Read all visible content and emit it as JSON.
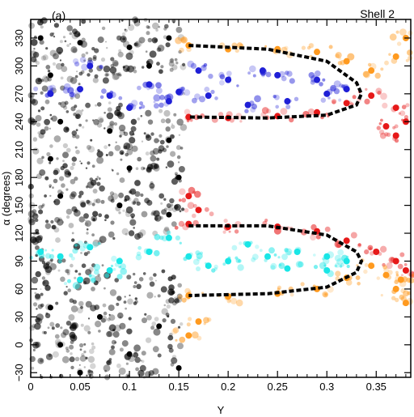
{
  "chart_data": {
    "type": "scatter",
    "panel_label": "(a)",
    "title": "Shell 2",
    "xlabel": "Y",
    "ylabel": "α (degrees)",
    "xlim": [
      0,
      0.385
    ],
    "ylim": [
      -35,
      350
    ],
    "xticks": [
      0,
      0.05,
      0.1,
      0.15,
      0.2,
      0.25,
      0.3,
      0.35
    ],
    "xtick_labels": [
      "0",
      "0.05",
      "0.1",
      "0.15",
      "0.2",
      "0.25",
      "0.3",
      "0.35"
    ],
    "yticks": [
      -30,
      0,
      30,
      60,
      90,
      120,
      150,
      180,
      210,
      240,
      270,
      300,
      330
    ],
    "ytick_labels": [
      "−30",
      "0",
      "30",
      "60",
      "90",
      "120",
      "150",
      "180",
      "210",
      "240",
      "270",
      "300",
      "330"
    ],
    "grid": false,
    "colors": {
      "black_region": "#000000",
      "blue": "#1f1fd6",
      "cyan": "#19e6e6",
      "red": "#e61919",
      "orange": "#ff9a1f"
    },
    "series": [
      {
        "color_key": "black_region",
        "description_points": [
          [
            0.01,
            330
          ],
          [
            0.05,
            325
          ],
          [
            0.1,
            320
          ],
          [
            0.14,
            330
          ],
          [
            0.02,
            290
          ],
          [
            0.12,
            300
          ],
          [
            0.03,
            240
          ],
          [
            0.08,
            230
          ],
          [
            0.14,
            220
          ],
          [
            0.02,
            200
          ],
          [
            0.1,
            190
          ],
          [
            0.15,
            180
          ],
          [
            0.03,
            160
          ],
          [
            0.09,
            150
          ],
          [
            0.14,
            140
          ],
          [
            0.02,
            40
          ],
          [
            0.07,
            30
          ],
          [
            0.13,
            20
          ],
          [
            0.03,
            0
          ],
          [
            0.1,
            -10
          ],
          [
            0.15,
            -25
          ],
          [
            0.05,
            -30
          ]
        ]
      },
      {
        "color_key": "blue",
        "points": [
          [
            0.02,
            270
          ],
          [
            0.05,
            275
          ],
          [
            0.08,
            268
          ],
          [
            0.12,
            280
          ],
          [
            0.15,
            272
          ],
          [
            0.2,
            285
          ],
          [
            0.25,
            290
          ],
          [
            0.29,
            285
          ],
          [
            0.32,
            275
          ],
          [
            0.1,
            255
          ],
          [
            0.22,
            258
          ],
          [
            0.26,
            262
          ],
          [
            0.06,
            300
          ],
          [
            0.17,
            295
          ],
          [
            0.235,
            295
          ],
          [
            0.3,
            270
          ],
          [
            0.14,
            262
          ],
          [
            0.18,
            268
          ]
        ]
      },
      {
        "color_key": "cyan",
        "points": [
          [
            0.01,
            100
          ],
          [
            0.03,
            95
          ],
          [
            0.06,
            105
          ],
          [
            0.09,
            90
          ],
          [
            0.12,
            100
          ],
          [
            0.16,
            95
          ],
          [
            0.2,
            90
          ],
          [
            0.24,
            95
          ],
          [
            0.27,
            100
          ],
          [
            0.3,
            95
          ],
          [
            0.32,
            90
          ],
          [
            0.08,
            80
          ],
          [
            0.14,
            115
          ],
          [
            0.22,
            108
          ],
          [
            0.26,
            82
          ],
          [
            0.05,
            70
          ],
          [
            0.3,
            80
          ],
          [
            0.18,
            85
          ]
        ]
      },
      {
        "color_key": "red",
        "points": [
          [
            0.16,
            245
          ],
          [
            0.2,
            244
          ],
          [
            0.25,
            246
          ],
          [
            0.29,
            250
          ],
          [
            0.32,
            260
          ],
          [
            0.345,
            268
          ],
          [
            0.37,
            255
          ],
          [
            0.38,
            240
          ],
          [
            0.16,
            130
          ],
          [
            0.2,
            127
          ],
          [
            0.25,
            127
          ],
          [
            0.29,
            122
          ],
          [
            0.32,
            112
          ],
          [
            0.35,
            100
          ],
          [
            0.37,
            90
          ],
          [
            0.38,
            80
          ],
          [
            0.16,
            160
          ],
          [
            0.17,
            145
          ],
          [
            0.36,
            235
          ],
          [
            0.37,
            225
          ]
        ]
      },
      {
        "color_key": "orange",
        "points": [
          [
            0.16,
            322
          ],
          [
            0.2,
            318
          ],
          [
            0.25,
            318
          ],
          [
            0.29,
            315
          ],
          [
            0.32,
            305
          ],
          [
            0.345,
            295
          ],
          [
            0.37,
            310
          ],
          [
            0.38,
            330
          ],
          [
            0.16,
            53
          ],
          [
            0.2,
            52
          ],
          [
            0.25,
            55
          ],
          [
            0.29,
            60
          ],
          [
            0.32,
            72
          ],
          [
            0.345,
            85
          ],
          [
            0.37,
            60
          ],
          [
            0.38,
            45
          ],
          [
            0.16,
            10
          ],
          [
            0.17,
            25
          ],
          [
            0.36,
            75
          ],
          [
            0.375,
            70
          ]
        ]
      }
    ],
    "separatrix_curves": [
      {
        "name_ref": "upper",
        "points": [
          [
            0.16,
            322
          ],
          [
            0.24,
            318
          ],
          [
            0.3,
            305
          ],
          [
            0.33,
            282
          ],
          [
            0.335,
            270
          ],
          [
            0.33,
            258
          ],
          [
            0.3,
            247
          ],
          [
            0.24,
            244
          ],
          [
            0.16,
            245
          ]
        ]
      },
      {
        "name_ref": "lower",
        "points": [
          [
            0.16,
            128
          ],
          [
            0.24,
            128
          ],
          [
            0.3,
            118
          ],
          [
            0.33,
            100
          ],
          [
            0.335,
            90
          ],
          [
            0.33,
            78
          ],
          [
            0.3,
            62
          ],
          [
            0.24,
            55
          ],
          [
            0.16,
            53
          ]
        ]
      }
    ]
  }
}
